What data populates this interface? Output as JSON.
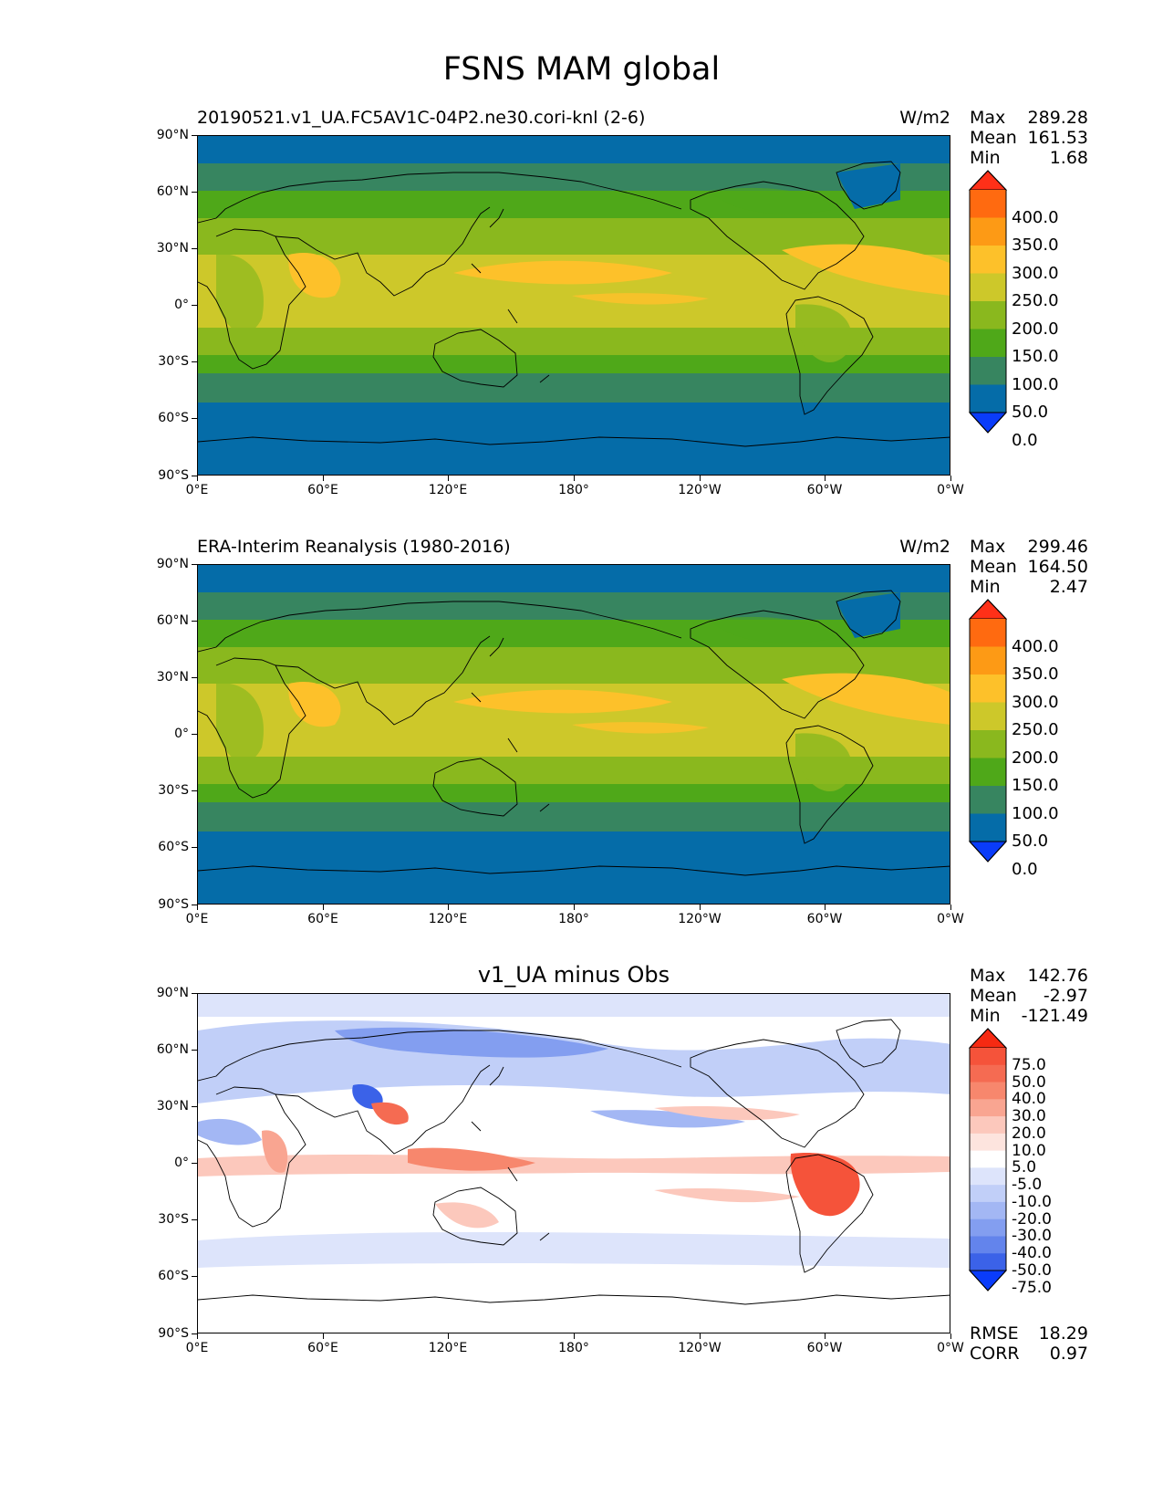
{
  "title": "FSNS MAM global",
  "axes": {
    "yticks": [
      "90°N",
      "60°N",
      "30°N",
      "0°",
      "30°S",
      "60°S",
      "90°S"
    ],
    "xticks": [
      "0°E",
      "60°E",
      "120°E",
      "180°",
      "120°W",
      "60°W",
      "0°W"
    ]
  },
  "panels": [
    {
      "title": "20190521.v1_UA.FC5AV1C-04P2.ne30.cori-knl (2-6)",
      "units": "W/m2",
      "stats": {
        "max_label": "Max",
        "max": "289.28",
        "mean_label": "Mean",
        "mean": "161.53",
        "min_label": "Min",
        "min": "1.68"
      },
      "colorbar": {
        "labels": [
          "400.0",
          "350.0",
          "300.0",
          "250.0",
          "200.0",
          "150.0",
          "100.0",
          "50.0",
          "0.0"
        ],
        "colors": [
          "#ff3018",
          "#ff6a10",
          "#fd9a15",
          "#fdc12a",
          "#cdc82a",
          "#8ab81e",
          "#4fa819",
          "#378560",
          "#056ca8",
          "#0a3cfa"
        ],
        "high_color": "#ff3018",
        "low_color": "#0a3cfa"
      }
    },
    {
      "title": "ERA-Interim Reanalysis (1980-2016)",
      "units": "W/m2",
      "stats": {
        "max_label": "Max",
        "max": "299.46",
        "mean_label": "Mean",
        "mean": "164.50",
        "min_label": "Min",
        "min": "2.47"
      },
      "colorbar": {
        "labels": [
          "400.0",
          "350.0",
          "300.0",
          "250.0",
          "200.0",
          "150.0",
          "100.0",
          "50.0",
          "0.0"
        ],
        "colors": [
          "#ff3018",
          "#ff6a10",
          "#fd9a15",
          "#fdc12a",
          "#cdc82a",
          "#8ab81e",
          "#4fa819",
          "#378560",
          "#056ca8",
          "#0a3cfa"
        ],
        "high_color": "#ff3018",
        "low_color": "#0a3cfa"
      }
    },
    {
      "title": "v1_UA minus Obs",
      "units": "",
      "stats": {
        "max_label": "Max",
        "max": "142.76",
        "mean_label": "Mean",
        "mean": "-2.97",
        "min_label": "Min",
        "min": "-121.49"
      },
      "colorbar": {
        "labels": [
          "75.0",
          "50.0",
          "40.0",
          "30.0",
          "20.0",
          "10.0",
          "5.0",
          "-5.0",
          "-10.0",
          "-20.0",
          "-30.0",
          "-40.0",
          "-50.0",
          "-75.0"
        ],
        "colors": [
          "#f6381e",
          "#f5533a",
          "#f56b52",
          "#f7876d",
          "#f9a591",
          "#fcc8bc",
          "#fde4de",
          "#ffffff",
          "#dde4fb",
          "#c1cff8",
          "#a3b7f4",
          "#839ef0",
          "#6384ec",
          "#3b62e8",
          "#1a44f3"
        ],
        "high_color": "#f62a12",
        "low_color": "#0a3cfa"
      },
      "footer": {
        "rmse_label": "RMSE",
        "rmse": "18.29",
        "corr_label": "CORR",
        "corr": "0.97"
      }
    }
  ]
}
